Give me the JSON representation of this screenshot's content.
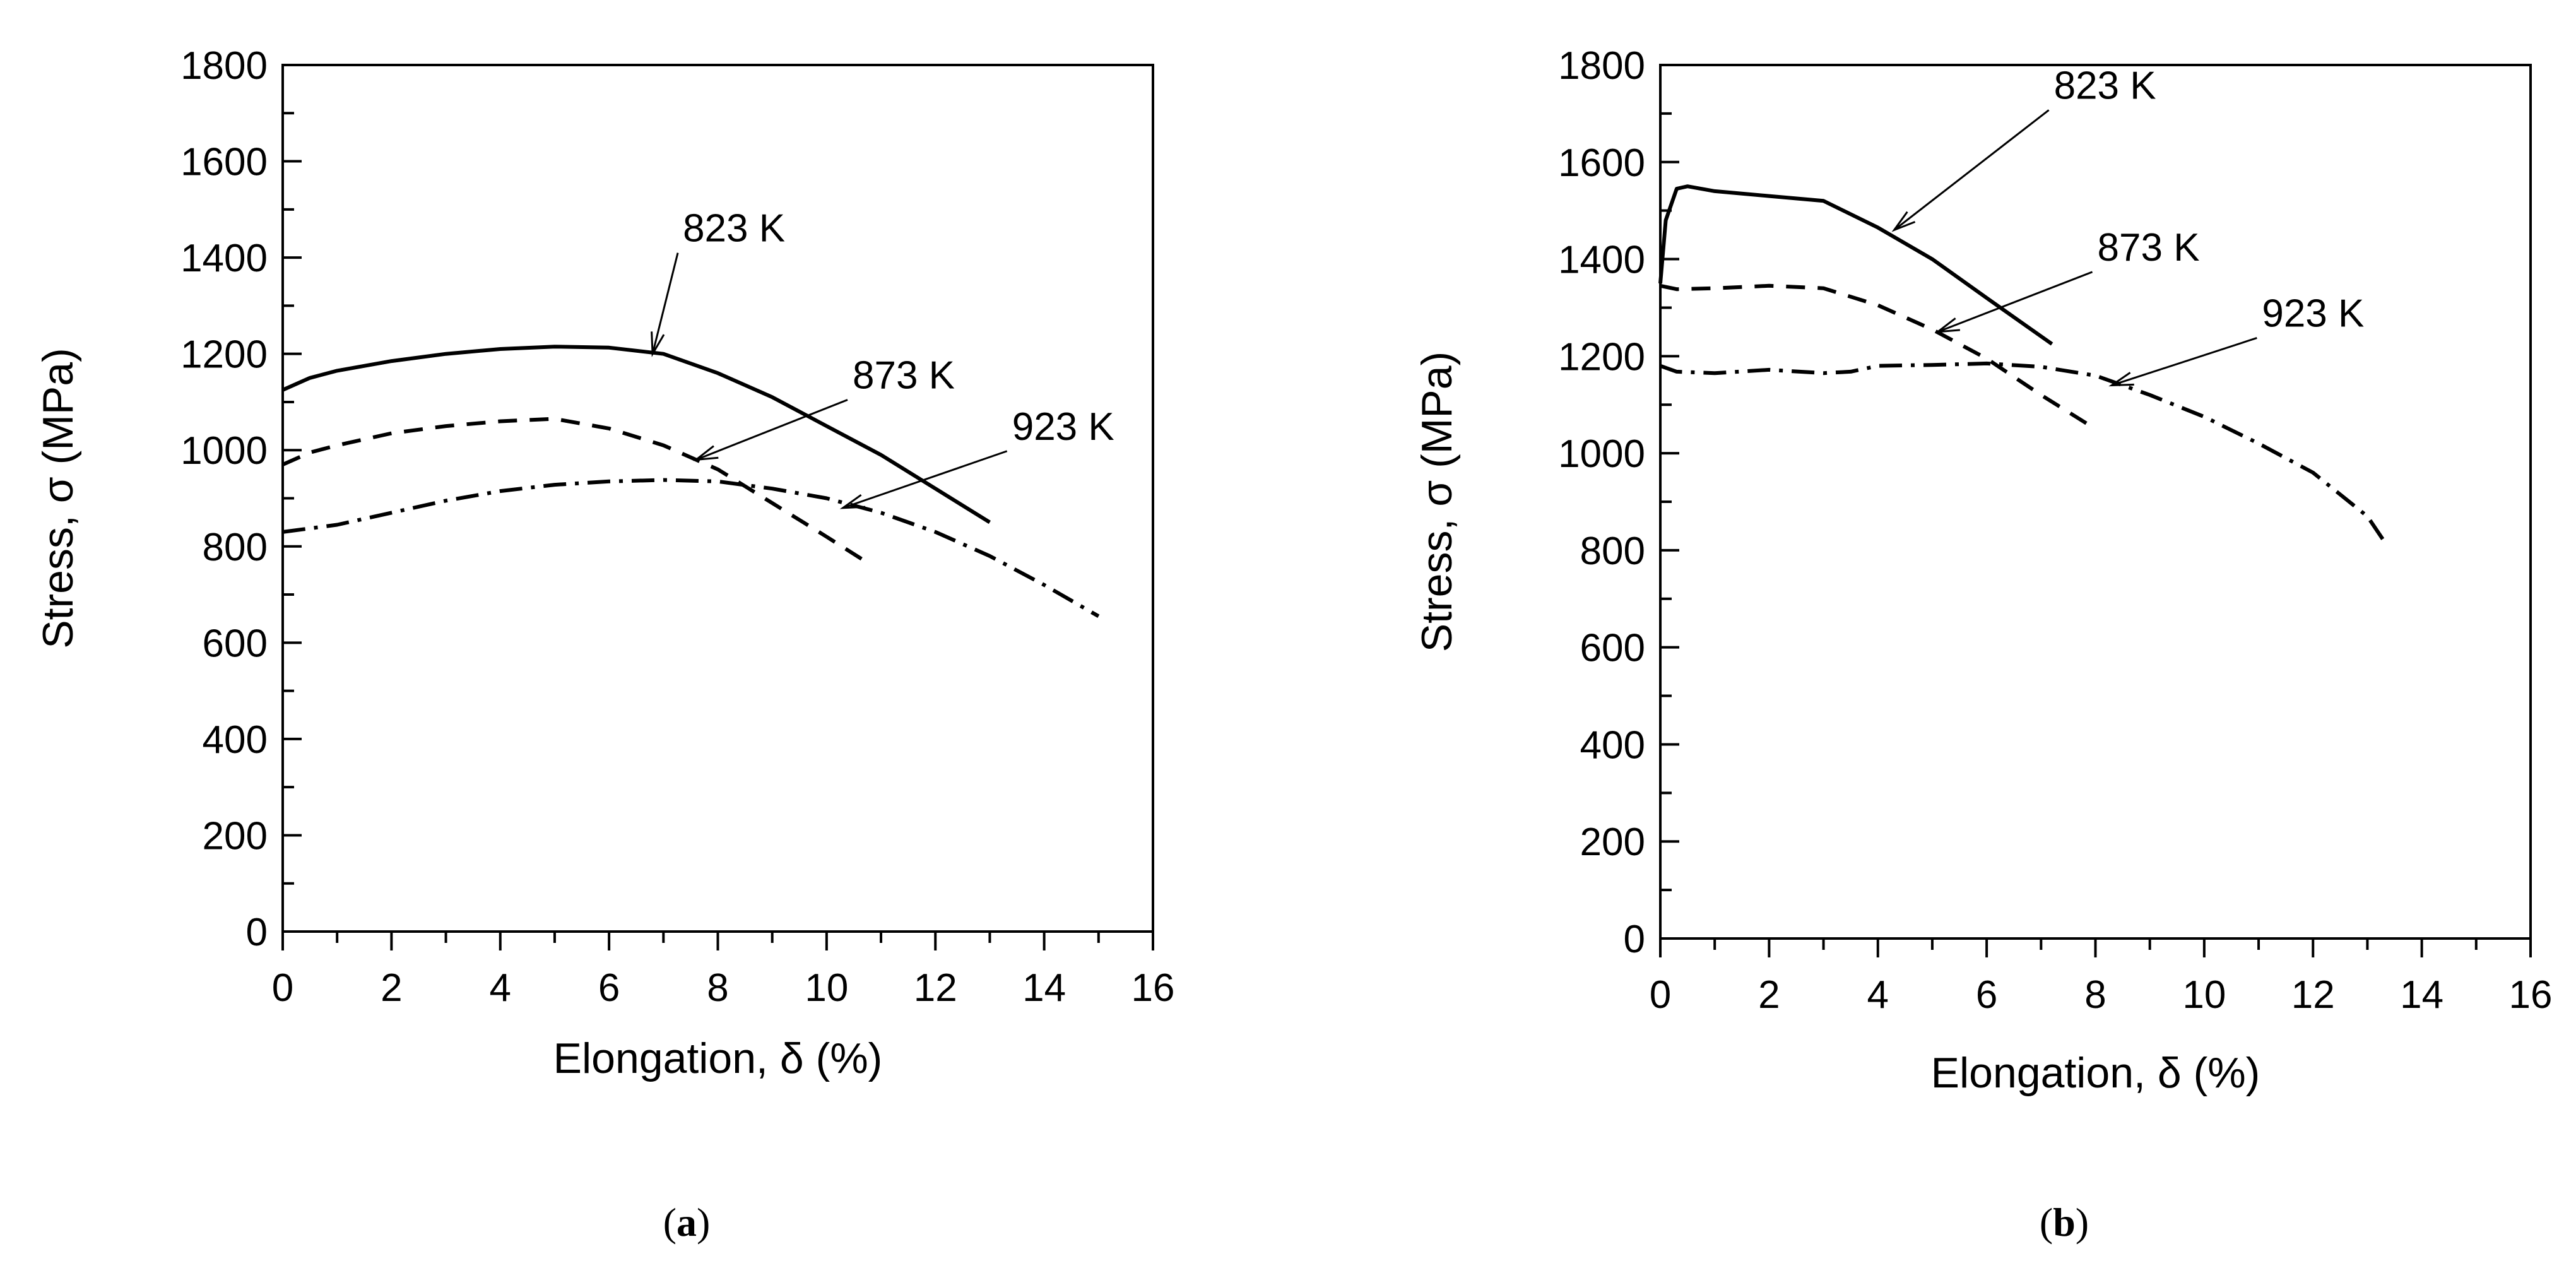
{
  "chart_data": [
    {
      "type": "line",
      "panel_label": "a",
      "xlabel": "Elongation, δ (%)",
      "ylabel": "Stress, σ (MPa)",
      "xlim": [
        0,
        16
      ],
      "ylim": [
        0,
        1800
      ],
      "x_ticks": [
        0,
        2,
        4,
        6,
        8,
        10,
        12,
        14,
        16
      ],
      "y_ticks": [
        0,
        200,
        400,
        600,
        800,
        1000,
        1200,
        1400,
        1600,
        1800
      ],
      "grid": false,
      "series": [
        {
          "name": "823 K",
          "style": "solid",
          "x": [
            0,
            0.5,
            1,
            2,
            3,
            4,
            5,
            6,
            7,
            8,
            9,
            10,
            11,
            12,
            13
          ],
          "y": [
            1125,
            1150,
            1165,
            1185,
            1200,
            1210,
            1215,
            1213,
            1200,
            1160,
            1110,
            1050,
            990,
            920,
            850
          ],
          "annotation": {
            "text": "823 K",
            "point": [
              6.8,
              1200
            ]
          }
        },
        {
          "name": "873 K",
          "style": "dashed",
          "x": [
            0,
            0.5,
            1,
            2,
            3,
            4,
            5,
            6,
            7,
            8,
            9,
            10,
            10.7
          ],
          "y": [
            970,
            995,
            1010,
            1035,
            1050,
            1060,
            1065,
            1045,
            1010,
            960,
            890,
            820,
            770
          ],
          "annotation": {
            "text": "873 K",
            "point": [
              7.6,
              980
            ]
          }
        },
        {
          "name": "923 K",
          "style": "dash-dot",
          "x": [
            0,
            1,
            2,
            3,
            4,
            5,
            6,
            7,
            8,
            9,
            10,
            11,
            12,
            13,
            14,
            15
          ],
          "y": [
            830,
            845,
            870,
            895,
            915,
            928,
            935,
            938,
            935,
            920,
            900,
            870,
            830,
            780,
            720,
            655
          ],
          "annotation": {
            "text": "923 K",
            "point": [
              10.3,
              880
            ]
          }
        }
      ]
    },
    {
      "type": "line",
      "panel_label": "b",
      "xlabel": "Elongation, δ (%)",
      "ylabel": "Stress, σ (MPa)",
      "xlim": [
        0,
        16
      ],
      "ylim": [
        0,
        1800
      ],
      "x_ticks": [
        0,
        2,
        4,
        6,
        8,
        10,
        12,
        14,
        16
      ],
      "y_ticks": [
        0,
        200,
        400,
        600,
        800,
        1000,
        1200,
        1400,
        1600,
        1800
      ],
      "grid": false,
      "series": [
        {
          "name": "823 K",
          "style": "solid",
          "x": [
            0,
            0.1,
            0.3,
            0.5,
            1,
            2,
            3,
            4,
            5,
            6,
            7.2
          ],
          "y": [
            1350,
            1480,
            1545,
            1550,
            1540,
            1530,
            1520,
            1465,
            1400,
            1320,
            1225
          ],
          "annotation": {
            "text": "823 K",
            "point": [
              4.3,
              1460
            ]
          }
        },
        {
          "name": "873 K",
          "style": "dashed",
          "x": [
            0,
            0.3,
            1,
            2,
            3,
            4,
            5,
            6,
            7,
            8
          ],
          "y": [
            1345,
            1338,
            1340,
            1345,
            1340,
            1305,
            1255,
            1195,
            1120,
            1050
          ],
          "annotation": {
            "text": "873 K",
            "point": [
              5.1,
              1250
            ]
          }
        },
        {
          "name": "923 K",
          "style": "dash-dot",
          "x": [
            0,
            0.3,
            1,
            2,
            3,
            3.5,
            4,
            5,
            6,
            7,
            8,
            9,
            10,
            11,
            12,
            13,
            13.3
          ],
          "y": [
            1180,
            1168,
            1165,
            1172,
            1165,
            1168,
            1180,
            1182,
            1185,
            1178,
            1160,
            1120,
            1075,
            1020,
            960,
            870,
            820
          ],
          "annotation": {
            "text": "923 K",
            "point": [
              8.3,
              1140
            ]
          }
        }
      ]
    }
  ]
}
